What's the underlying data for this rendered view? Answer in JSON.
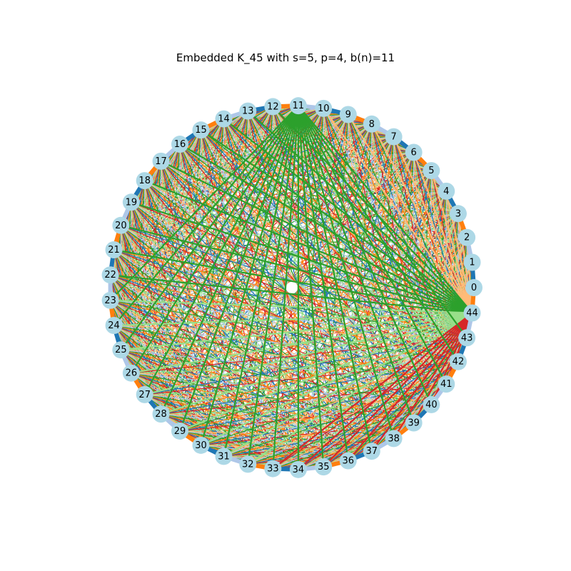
{
  "figure": {
    "title": "Embedded K_45 with s=5, p=4, b(n)=11"
  },
  "graph": {
    "n": 45,
    "node_color": "#add8e6",
    "nodes": [
      "0",
      "1",
      "2",
      "3",
      "4",
      "5",
      "6",
      "7",
      "8",
      "9",
      "10",
      "11",
      "12",
      "13",
      "14",
      "15",
      "16",
      "17",
      "18",
      "19",
      "20",
      "21",
      "22",
      "23",
      "24",
      "25",
      "26",
      "27",
      "28",
      "29",
      "30",
      "31",
      "32",
      "33",
      "34",
      "35",
      "36",
      "37",
      "38",
      "39",
      "40",
      "41",
      "42",
      "43",
      "44"
    ],
    "palette": [
      "#1f77b4",
      "#ff7f0e",
      "#2ca02c",
      "#aec7e8",
      "#ffbb78",
      "#98df8a",
      "#d62728"
    ],
    "rim_color_order": [
      "#1f77b4",
      "#aec7e8",
      "#ff7f0e"
    ],
    "pages": [
      {
        "name": "page-orange-light",
        "hub": 44,
        "targets_from": 0,
        "targets_to": 10,
        "color": "#ffbb78"
      },
      {
        "name": "page-green-dark",
        "hub": 44,
        "targets_from": 11,
        "targets_to": 22,
        "color": "#2ca02c"
      },
      {
        "name": "page-green-light",
        "hub": 44,
        "targets_from": 23,
        "targets_to": 33,
        "color": "#98df8a"
      },
      {
        "name": "page-red",
        "hub": 44,
        "targets_from": 33,
        "targets_to": 43,
        "color": "#d62728"
      },
      {
        "name": "page-green-fan",
        "hub": 11,
        "targets_from": 23,
        "targets_to": 44,
        "color": "#2ca02c"
      }
    ]
  }
}
